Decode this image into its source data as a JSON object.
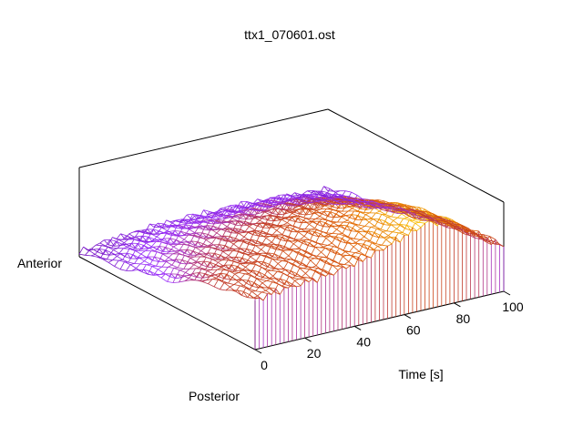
{
  "chart_data": {
    "type": "surface",
    "title": "ttx1_070601.ost",
    "xlabel": "Time [s]",
    "y_tick_labels": [
      "Anterior",
      "Posterior"
    ],
    "xlim": [
      0,
      100
    ],
    "x_ticks": [
      0,
      20,
      40,
      60,
      80,
      100
    ],
    "x_tick_labels": [
      "0",
      "20",
      "40",
      "60",
      "80",
      "100"
    ],
    "grid": false,
    "legend": "none",
    "colormap": [
      "#6a0dad",
      "#9b30ff",
      "#c0392b",
      "#e06000",
      "#ffd700"
    ],
    "t_samples": [
      0,
      10,
      20,
      30,
      40,
      50,
      60,
      70,
      80,
      90,
      100
    ],
    "s_samples": [
      0,
      0.25,
      0.5,
      0.75,
      1
    ],
    "z_grid": [
      [
        0.55,
        0.5,
        0.25,
        0.15,
        0.05
      ],
      [
        0.6,
        0.55,
        0.4,
        0.25,
        0.1
      ],
      [
        0.62,
        0.58,
        0.45,
        0.3,
        0.12
      ],
      [
        0.65,
        0.62,
        0.5,
        0.35,
        0.15
      ],
      [
        0.7,
        0.66,
        0.55,
        0.38,
        0.15
      ],
      [
        0.78,
        0.72,
        0.6,
        0.4,
        0.15
      ],
      [
        0.88,
        0.8,
        0.65,
        0.42,
        0.15
      ],
      [
        0.98,
        0.9,
        0.7,
        0.42,
        0.15
      ],
      [
        0.9,
        0.82,
        0.62,
        0.38,
        0.14
      ],
      [
        0.7,
        0.62,
        0.48,
        0.3,
        0.12
      ],
      [
        0.5,
        0.45,
        0.35,
        0.22,
        0.1
      ]
    ]
  }
}
